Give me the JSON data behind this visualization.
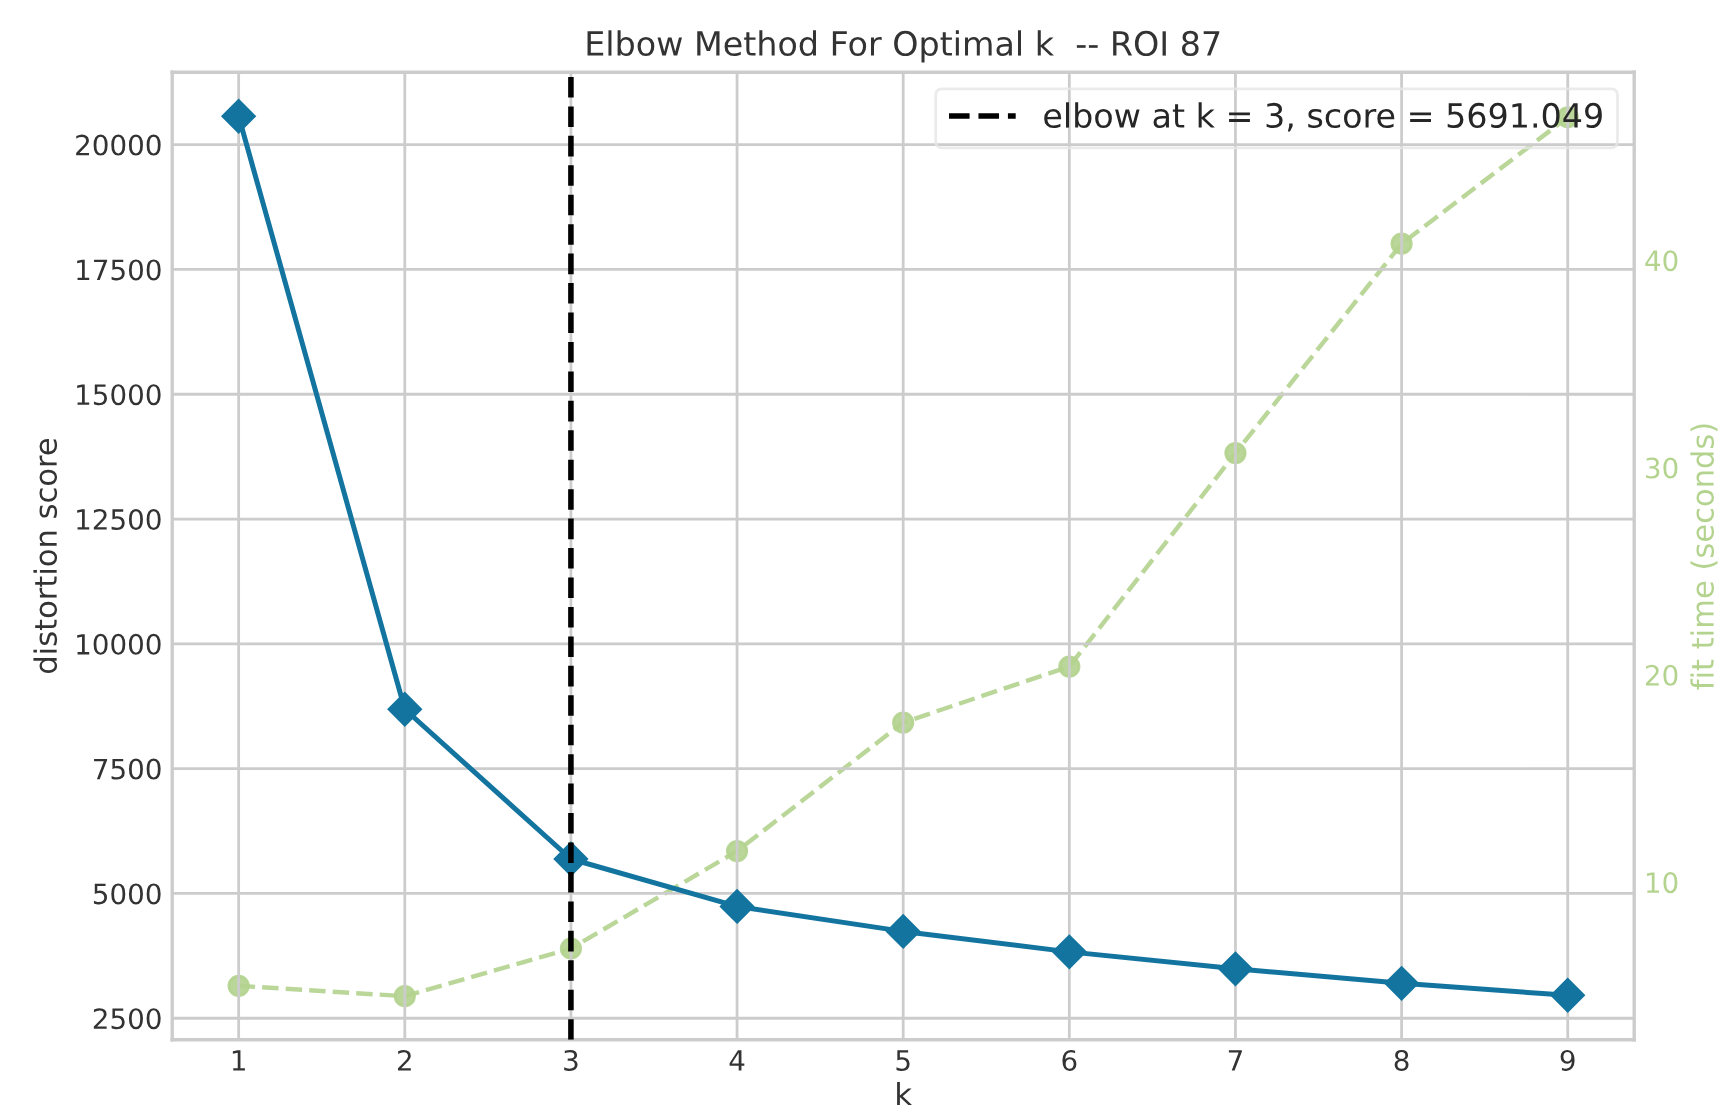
{
  "chart_data": {
    "type": "line",
    "title": "Elbow Method For Optimal k  -- ROI 87",
    "xlabel": "k",
    "ylabel": "distortion score",
    "y2label": "fit time (seconds)",
    "x": [
      1,
      2,
      3,
      4,
      5,
      6,
      7,
      8,
      9
    ],
    "series": [
      {
        "color": "#13759f",
        "marker": "diamond",
        "line_style": "solid",
        "values": [
          20570,
          8690,
          5690,
          4740,
          4240,
          3830,
          3490,
          3200,
          2960
        ]
      },
      {
        "color": "#b3d38e",
        "marker": "circle",
        "line_style": "dashed",
        "axis": "y2",
        "values": [
          5.0,
          4.5,
          6.8,
          11.5,
          17.7,
          20.4,
          30.7,
          40.8,
          46.9
        ]
      }
    ],
    "xlim": [
      0.6,
      9.4
    ],
    "xticks": [
      1,
      2,
      3,
      4,
      5,
      6,
      7,
      8,
      9
    ],
    "ylim": [
      2070,
      21450
    ],
    "yticks": [
      2500,
      5000,
      7500,
      10000,
      12500,
      15000,
      17500,
      20000
    ],
    "y2lim": [
      2.4,
      49.07
    ],
    "y2ticks": [
      10,
      20,
      30,
      40
    ],
    "ref_lines": [
      {
        "axis": "x",
        "value": 3,
        "label": "elbow at k = 3, score = 5691.049",
        "color": "#000000",
        "line_style": "dashed"
      }
    ],
    "grid": true,
    "legend": "top right"
  }
}
